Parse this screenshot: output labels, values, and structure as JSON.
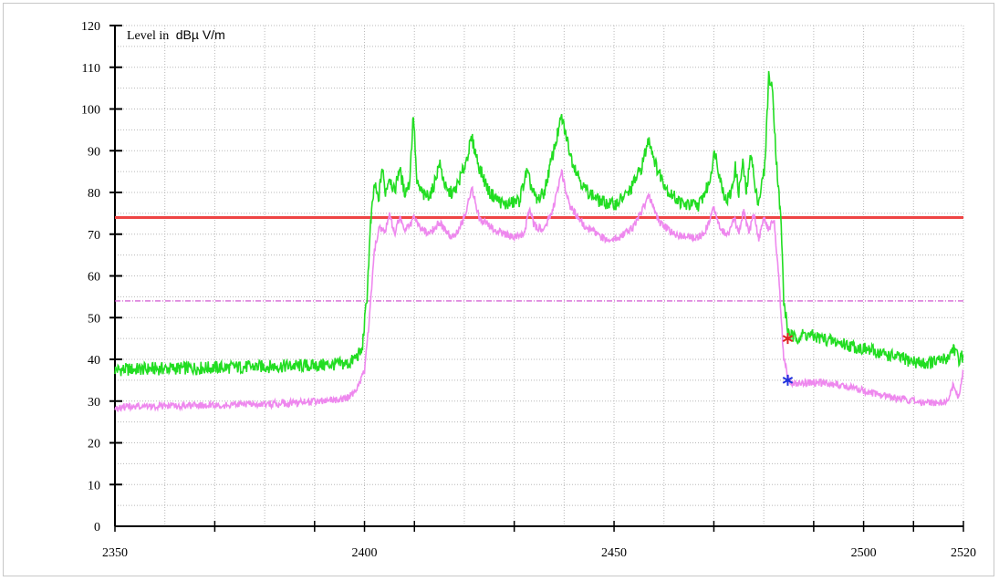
{
  "chart_data": {
    "type": "line",
    "ylabel_prefix": "Level in",
    "ylabel_unit": "dBµ  V/m",
    "xlim": [
      2350,
      2520
    ],
    "ylim": [
      0,
      120
    ],
    "x_ticks": [
      2350,
      2400,
      2450,
      2500,
      2520
    ],
    "y_ticks": [
      0,
      10,
      20,
      30,
      40,
      50,
      60,
      70,
      80,
      90,
      100,
      110,
      120
    ],
    "grid": true,
    "limit_lines": [
      {
        "value": 74,
        "color": "#ee4444",
        "style": "solid"
      },
      {
        "value": 54,
        "color": "#cc44cc",
        "style": "dash-dot"
      }
    ],
    "series": [
      {
        "color": "#22dd22",
        "points": [
          [
            2350,
            37.5
          ],
          [
            2360,
            37.8
          ],
          [
            2370,
            38
          ],
          [
            2380,
            38.3
          ],
          [
            2390,
            38.5
          ],
          [
            2397,
            39
          ],
          [
            2399.5,
            42
          ],
          [
            2400.5,
            55
          ],
          [
            2401.2,
            72
          ],
          [
            2402,
            82
          ],
          [
            2402.8,
            78
          ],
          [
            2403.5,
            86
          ],
          [
            2404.2,
            80
          ],
          [
            2405,
            84
          ],
          [
            2406,
            80
          ],
          [
            2407,
            86
          ],
          [
            2408,
            80
          ],
          [
            2409,
            82
          ],
          [
            2409.8,
            99
          ],
          [
            2410.5,
            82
          ],
          [
            2412,
            79
          ],
          [
            2413.5,
            80
          ],
          [
            2415,
            87
          ],
          [
            2416.5,
            80
          ],
          [
            2418,
            80
          ],
          [
            2420,
            86
          ],
          [
            2421.5,
            93
          ],
          [
            2423,
            86
          ],
          [
            2425,
            80
          ],
          [
            2428,
            77
          ],
          [
            2431,
            78
          ],
          [
            2432.5,
            85
          ],
          [
            2433.5,
            81
          ],
          [
            2434.5,
            78
          ],
          [
            2436,
            80
          ],
          [
            2437.5,
            88
          ],
          [
            2439.5,
            98
          ],
          [
            2441.5,
            88
          ],
          [
            2444,
            81
          ],
          [
            2447,
            78
          ],
          [
            2450,
            77
          ],
          [
            2453,
            80
          ],
          [
            2455.5,
            86
          ],
          [
            2457,
            93
          ],
          [
            2458.5,
            86
          ],
          [
            2461,
            80
          ],
          [
            2464,
            77
          ],
          [
            2467,
            77
          ],
          [
            2469,
            82
          ],
          [
            2470.2,
            90
          ],
          [
            2471.5,
            82
          ],
          [
            2472.5,
            78
          ],
          [
            2473.5,
            80
          ],
          [
            2474.3,
            86
          ],
          [
            2475,
            80
          ],
          [
            2475.8,
            87
          ],
          [
            2476.5,
            80
          ],
          [
            2477.5,
            90
          ],
          [
            2478.3,
            80
          ],
          [
            2479,
            78
          ],
          [
            2480.2,
            86
          ],
          [
            2481,
            108
          ],
          [
            2481.8,
            104
          ],
          [
            2482.5,
            88
          ],
          [
            2483.5,
            72
          ],
          [
            2484,
            54
          ],
          [
            2484.8,
            47
          ],
          [
            2486,
            45
          ],
          [
            2488,
            46
          ],
          [
            2490,
            45.5
          ],
          [
            2495,
            44
          ],
          [
            2500,
            42.5
          ],
          [
            2505,
            41
          ],
          [
            2510,
            39.5
          ],
          [
            2512,
            39
          ],
          [
            2515,
            39.5
          ],
          [
            2517,
            40.5
          ],
          [
            2518,
            43
          ],
          [
            2519,
            40
          ],
          [
            2520,
            41
          ]
        ]
      },
      {
        "color": "#ee88ee",
        "points": [
          [
            2350,
            28.5
          ],
          [
            2360,
            28.8
          ],
          [
            2370,
            29
          ],
          [
            2380,
            29.3
          ],
          [
            2390,
            29.8
          ],
          [
            2396,
            30.5
          ],
          [
            2398,
            32
          ],
          [
            2400,
            37
          ],
          [
            2401,
            50
          ],
          [
            2402,
            66
          ],
          [
            2403,
            72
          ],
          [
            2404,
            70
          ],
          [
            2405,
            75
          ],
          [
            2406,
            70
          ],
          [
            2407,
            74
          ],
          [
            2408,
            71
          ],
          [
            2409,
            72
          ],
          [
            2410,
            74
          ],
          [
            2411,
            72
          ],
          [
            2413,
            70
          ],
          [
            2415,
            73
          ],
          [
            2416,
            71
          ],
          [
            2418,
            69
          ],
          [
            2420,
            74
          ],
          [
            2421.5,
            81
          ],
          [
            2423,
            74
          ],
          [
            2426,
            71
          ],
          [
            2430,
            69
          ],
          [
            2432,
            70
          ],
          [
            2433,
            76
          ],
          [
            2434,
            72
          ],
          [
            2436,
            71
          ],
          [
            2438,
            77
          ],
          [
            2439.5,
            85
          ],
          [
            2441,
            77
          ],
          [
            2444,
            72
          ],
          [
            2448,
            69
          ],
          [
            2451,
            69
          ],
          [
            2454,
            72
          ],
          [
            2457,
            79
          ],
          [
            2459,
            73
          ],
          [
            2462,
            70
          ],
          [
            2466,
            69
          ],
          [
            2468,
            70
          ],
          [
            2470,
            76
          ],
          [
            2471.5,
            71
          ],
          [
            2473,
            70
          ],
          [
            2474,
            74
          ],
          [
            2475,
            70
          ],
          [
            2476,
            76
          ],
          [
            2477,
            70
          ],
          [
            2478,
            75
          ],
          [
            2479,
            69
          ],
          [
            2480,
            74
          ],
          [
            2481,
            71
          ],
          [
            2482,
            74
          ],
          [
            2483,
            60
          ],
          [
            2484,
            40
          ],
          [
            2485,
            35
          ],
          [
            2486,
            34
          ],
          [
            2490,
            34.5
          ],
          [
            2495,
            34
          ],
          [
            2500,
            32.5
          ],
          [
            2505,
            31
          ],
          [
            2510,
            30
          ],
          [
            2515,
            29.5
          ],
          [
            2517,
            30
          ],
          [
            2518,
            34
          ],
          [
            2519,
            31
          ],
          [
            2520,
            37
          ]
        ]
      }
    ],
    "markers": [
      {
        "x": 2484.8,
        "y": 45,
        "color": "#dd2222",
        "symbol": "*"
      },
      {
        "x": 2484.8,
        "y": 35,
        "color": "#2233dd",
        "symbol": "*"
      }
    ]
  }
}
